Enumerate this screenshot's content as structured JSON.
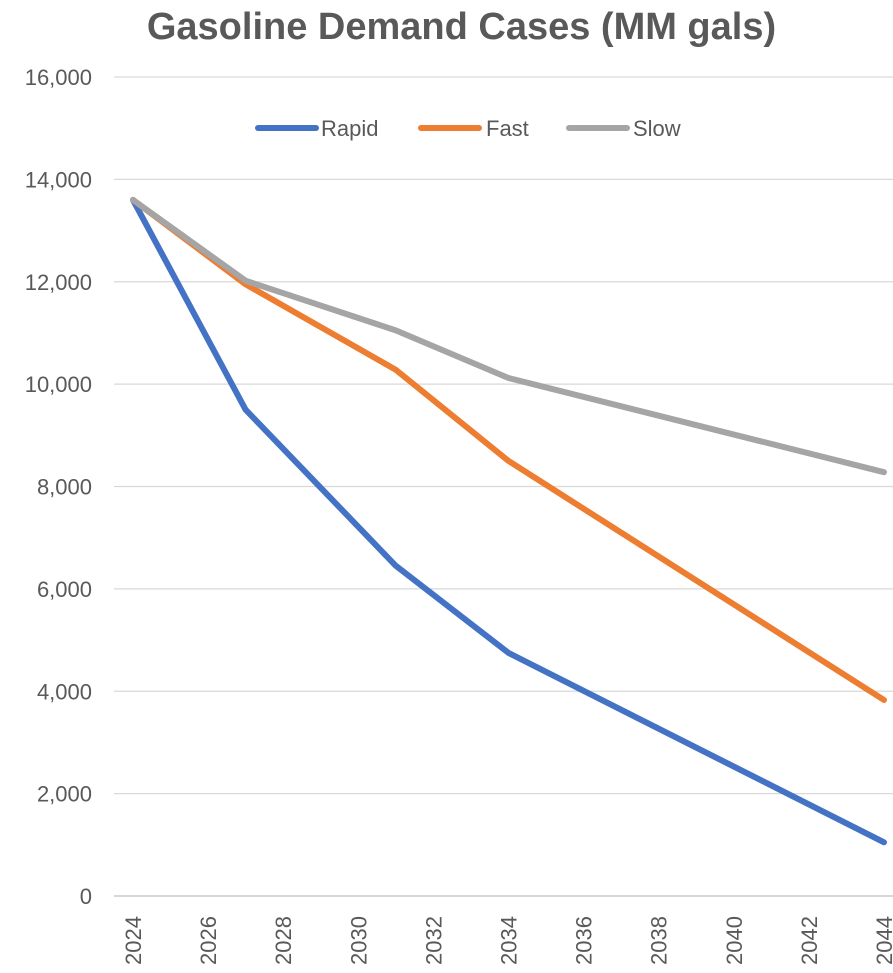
{
  "chart_data": {
    "type": "line",
    "title": "Gasoline Demand Cases (MM gals)",
    "xlabel": "",
    "ylabel": "",
    "x": [
      2024,
      2027,
      2031,
      2034,
      2044
    ],
    "xlim": [
      2024,
      2044
    ],
    "xticks": [
      2024,
      2026,
      2028,
      2030,
      2032,
      2034,
      2036,
      2038,
      2040,
      2042,
      2044
    ],
    "xtick_labels": [
      "2024",
      "2026",
      "2028",
      "2030",
      "2032",
      "2034",
      "2036",
      "2038",
      "2040",
      "2042",
      "2044"
    ],
    "ylim": [
      0,
      16000
    ],
    "yticks": [
      0,
      2000,
      4000,
      6000,
      8000,
      10000,
      12000,
      14000,
      16000
    ],
    "ytick_labels": [
      "0",
      "2,000",
      "4,000",
      "6,000",
      "8,000",
      "10,000",
      "12,000",
      "14,000",
      "16,000"
    ],
    "grid": "horizontal",
    "legend_position": "top",
    "series": [
      {
        "name": "Rapid",
        "color": "#4472C4",
        "values": [
          13600,
          9500,
          6450,
          4750,
          1050
        ]
      },
      {
        "name": "Fast",
        "color": "#ED7D31",
        "values": [
          13600,
          11950,
          10280,
          8500,
          3830
        ]
      },
      {
        "name": "Slow",
        "color": "#A5A5A5",
        "values": [
          13600,
          12020,
          11050,
          10120,
          8280
        ]
      }
    ]
  }
}
